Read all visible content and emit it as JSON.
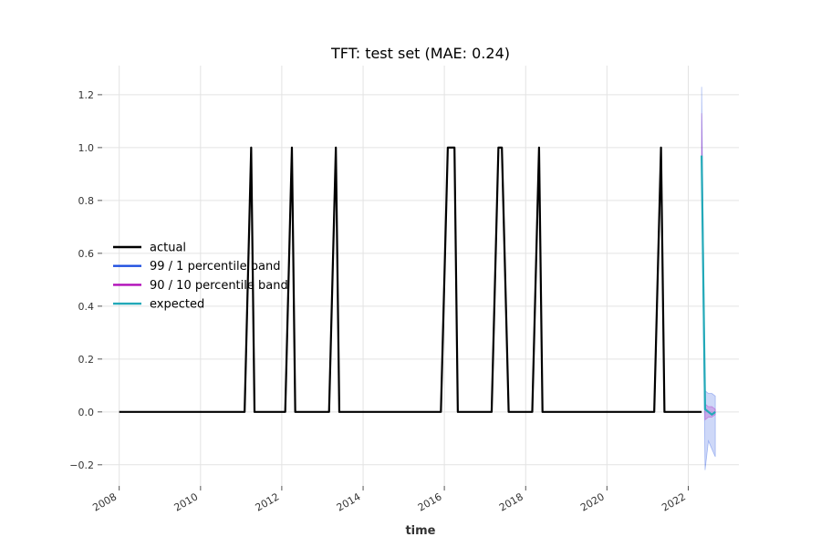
{
  "chart_data": {
    "type": "line",
    "title": "TFT: test set (MAE: 0.24)",
    "xlabel": "time",
    "ylabel": "",
    "xlim": [
      "2007-08-01",
      "2023-04-01"
    ],
    "ylim": [
      -0.28,
      1.31
    ],
    "x_ticks": [
      "2008",
      "2010",
      "2012",
      "2014",
      "2016",
      "2018",
      "2020",
      "2022"
    ],
    "y_ticks": [
      -0.2,
      0.0,
      0.2,
      0.4,
      0.6,
      0.8,
      1.0,
      1.2
    ],
    "y_tick_labels": [
      "−0.2",
      "0.0",
      "0.2",
      "0.4",
      "0.6",
      "0.8",
      "1.0",
      "1.2"
    ],
    "grid": true,
    "legend_position": "center-left",
    "series": [
      {
        "name": "actual",
        "color": "#000000",
        "points": [
          [
            "2008-01-01",
            0
          ],
          [
            "2011-02-01",
            0
          ],
          [
            "2011-04-01",
            1
          ],
          [
            "2011-05-01",
            0
          ],
          [
            "2012-02-01",
            0
          ],
          [
            "2012-04-01",
            1
          ],
          [
            "2012-05-01",
            0
          ],
          [
            "2013-03-01",
            0
          ],
          [
            "2013-05-01",
            1
          ],
          [
            "2013-06-01",
            0
          ],
          [
            "2015-12-01",
            0
          ],
          [
            "2016-02-01",
            1
          ],
          [
            "2016-04-01",
            1
          ],
          [
            "2016-05-01",
            0
          ],
          [
            "2017-03-01",
            0
          ],
          [
            "2017-05-01",
            1
          ],
          [
            "2017-06-01",
            1
          ],
          [
            "2017-08-01",
            0
          ],
          [
            "2018-03-01",
            0
          ],
          [
            "2018-05-01",
            1
          ],
          [
            "2018-06-01",
            0
          ],
          [
            "2021-03-01",
            0
          ],
          [
            "2021-05-01",
            1
          ],
          [
            "2021-06-01",
            0
          ],
          [
            "2022-05-01",
            0
          ]
        ]
      },
      {
        "name": "99 / 1 percentile band",
        "color": "#1f4fe0",
        "band": {
          "x": [
            "2022-05-01",
            "2022-06-01",
            "2022-07-01",
            "2022-08-01",
            "2022-09-01"
          ],
          "upper": [
            1.23,
            0.08,
            0.07,
            0.07,
            0.06
          ],
          "lower": [
            0.9,
            -0.22,
            -0.11,
            -0.14,
            -0.17
          ]
        }
      },
      {
        "name": "90 / 10 percentile band",
        "color": "#b10eb8",
        "band": {
          "x": [
            "2022-05-01",
            "2022-06-01",
            "2022-07-01",
            "2022-08-01",
            "2022-09-01"
          ],
          "upper": [
            1.13,
            0.03,
            0.02,
            0.02,
            0.01
          ],
          "lower": [
            0.95,
            -0.03,
            -0.02,
            -0.02,
            -0.01
          ]
        }
      },
      {
        "name": "expected",
        "color": "#22a9b8",
        "points": [
          [
            "2022-05-01",
            0.97
          ],
          [
            "2022-06-01",
            0.01
          ],
          [
            "2022-07-01",
            0.0
          ],
          [
            "2022-08-01",
            -0.01
          ],
          [
            "2022-09-01",
            0.0
          ]
        ]
      }
    ]
  }
}
